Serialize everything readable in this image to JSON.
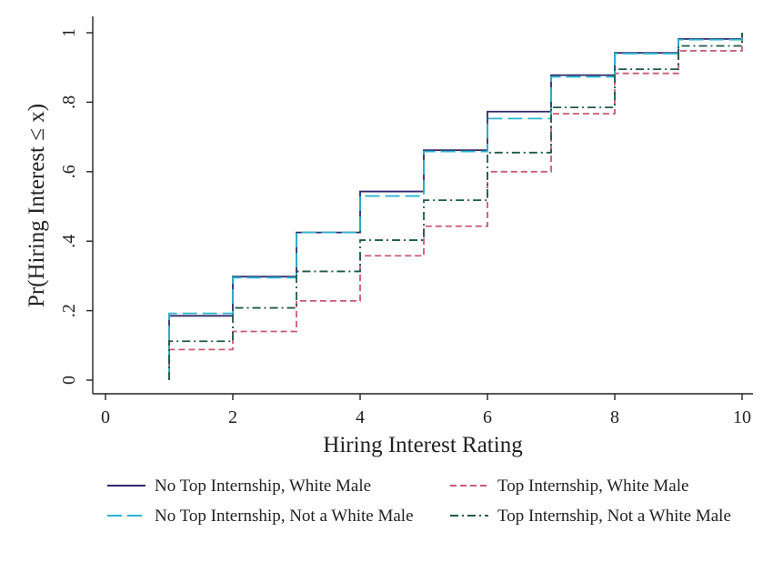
{
  "chart_data": {
    "type": "line",
    "step": true,
    "title": "",
    "xlabel": "Hiring Interest Rating",
    "ylabel": "Pr(Hiring Interest ≤ x)",
    "xlim": [
      0,
      10
    ],
    "ylim": [
      0,
      1
    ],
    "xticks": [
      0,
      2,
      4,
      6,
      8,
      10
    ],
    "xtick_labels": [
      "0",
      "2",
      "4",
      "6",
      "8",
      "10"
    ],
    "yticks": [
      0,
      0.2,
      0.4,
      0.6,
      0.8,
      1
    ],
    "ytick_labels": [
      "0",
      ".2",
      ".4",
      ".6",
      ".8",
      "1"
    ],
    "grid": false,
    "legend_position": "bottom",
    "x": [
      1,
      2,
      3,
      4,
      5,
      6,
      7,
      8,
      9,
      10
    ],
    "series": [
      {
        "name": "No Top Internship, White Male",
        "color": "#2e2a6b",
        "dash": "solid",
        "values": [
          0.185,
          0.298,
          0.425,
          0.543,
          0.662,
          0.773,
          0.878,
          0.942,
          0.982,
          1.0
        ]
      },
      {
        "name": "Top Internship, White Male",
        "color": "#c95a72",
        "dash": "short-dash",
        "values": [
          0.088,
          0.14,
          0.228,
          0.358,
          0.443,
          0.6,
          0.767,
          0.883,
          0.948,
          1.0
        ]
      },
      {
        "name": "No Top Internship, Not a White Male",
        "color": "#2bb5cf",
        "dash": "long-dash",
        "values": [
          0.192,
          0.295,
          0.425,
          0.53,
          0.658,
          0.753,
          0.873,
          0.94,
          0.98,
          1.0
        ]
      },
      {
        "name": "Top Internship, Not a White Male",
        "color": "#1e5a48",
        "dash": "dash-dot",
        "values": [
          0.112,
          0.208,
          0.313,
          0.403,
          0.518,
          0.655,
          0.785,
          0.895,
          0.962,
          1.0
        ]
      }
    ]
  }
}
